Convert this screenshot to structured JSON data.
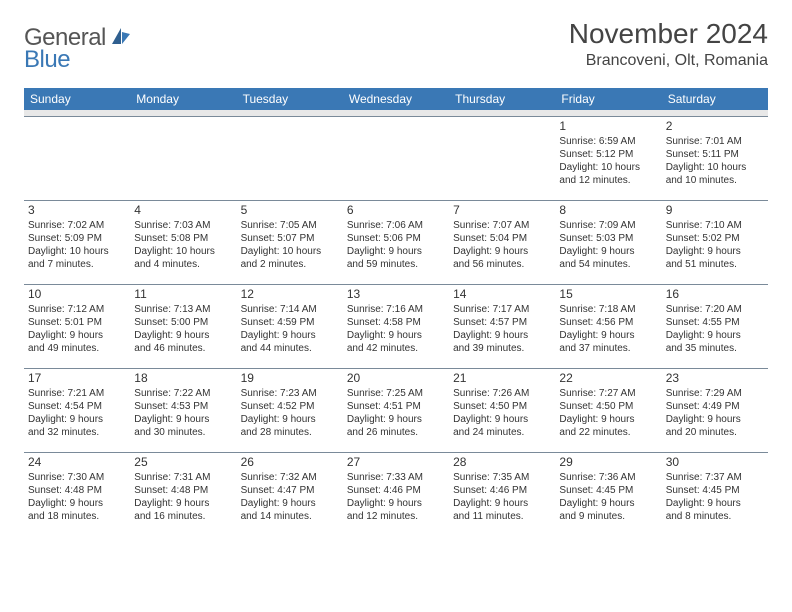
{
  "logo": {
    "general": "General",
    "blue": "Blue"
  },
  "title": "November 2024",
  "location": "Brancoveni, Olt, Romania",
  "colors": {
    "header_bg": "#3a78b5",
    "header_text": "#ffffff",
    "spacer_bg": "#e8e8e8",
    "border": "#7a8a99",
    "text": "#333333",
    "logo_gray": "#555555",
    "logo_blue": "#3a78b5",
    "page_bg": "#ffffff"
  },
  "day_headers": [
    "Sunday",
    "Monday",
    "Tuesday",
    "Wednesday",
    "Thursday",
    "Friday",
    "Saturday"
  ],
  "weeks": [
    [
      null,
      null,
      null,
      null,
      null,
      {
        "n": "1",
        "sr": "Sunrise: 6:59 AM",
        "ss": "Sunset: 5:12 PM",
        "d1": "Daylight: 10 hours",
        "d2": "and 12 minutes."
      },
      {
        "n": "2",
        "sr": "Sunrise: 7:01 AM",
        "ss": "Sunset: 5:11 PM",
        "d1": "Daylight: 10 hours",
        "d2": "and 10 minutes."
      }
    ],
    [
      {
        "n": "3",
        "sr": "Sunrise: 7:02 AM",
        "ss": "Sunset: 5:09 PM",
        "d1": "Daylight: 10 hours",
        "d2": "and 7 minutes."
      },
      {
        "n": "4",
        "sr": "Sunrise: 7:03 AM",
        "ss": "Sunset: 5:08 PM",
        "d1": "Daylight: 10 hours",
        "d2": "and 4 minutes."
      },
      {
        "n": "5",
        "sr": "Sunrise: 7:05 AM",
        "ss": "Sunset: 5:07 PM",
        "d1": "Daylight: 10 hours",
        "d2": "and 2 minutes."
      },
      {
        "n": "6",
        "sr": "Sunrise: 7:06 AM",
        "ss": "Sunset: 5:06 PM",
        "d1": "Daylight: 9 hours",
        "d2": "and 59 minutes."
      },
      {
        "n": "7",
        "sr": "Sunrise: 7:07 AM",
        "ss": "Sunset: 5:04 PM",
        "d1": "Daylight: 9 hours",
        "d2": "and 56 minutes."
      },
      {
        "n": "8",
        "sr": "Sunrise: 7:09 AM",
        "ss": "Sunset: 5:03 PM",
        "d1": "Daylight: 9 hours",
        "d2": "and 54 minutes."
      },
      {
        "n": "9",
        "sr": "Sunrise: 7:10 AM",
        "ss": "Sunset: 5:02 PM",
        "d1": "Daylight: 9 hours",
        "d2": "and 51 minutes."
      }
    ],
    [
      {
        "n": "10",
        "sr": "Sunrise: 7:12 AM",
        "ss": "Sunset: 5:01 PM",
        "d1": "Daylight: 9 hours",
        "d2": "and 49 minutes."
      },
      {
        "n": "11",
        "sr": "Sunrise: 7:13 AM",
        "ss": "Sunset: 5:00 PM",
        "d1": "Daylight: 9 hours",
        "d2": "and 46 minutes."
      },
      {
        "n": "12",
        "sr": "Sunrise: 7:14 AM",
        "ss": "Sunset: 4:59 PM",
        "d1": "Daylight: 9 hours",
        "d2": "and 44 minutes."
      },
      {
        "n": "13",
        "sr": "Sunrise: 7:16 AM",
        "ss": "Sunset: 4:58 PM",
        "d1": "Daylight: 9 hours",
        "d2": "and 42 minutes."
      },
      {
        "n": "14",
        "sr": "Sunrise: 7:17 AM",
        "ss": "Sunset: 4:57 PM",
        "d1": "Daylight: 9 hours",
        "d2": "and 39 minutes."
      },
      {
        "n": "15",
        "sr": "Sunrise: 7:18 AM",
        "ss": "Sunset: 4:56 PM",
        "d1": "Daylight: 9 hours",
        "d2": "and 37 minutes."
      },
      {
        "n": "16",
        "sr": "Sunrise: 7:20 AM",
        "ss": "Sunset: 4:55 PM",
        "d1": "Daylight: 9 hours",
        "d2": "and 35 minutes."
      }
    ],
    [
      {
        "n": "17",
        "sr": "Sunrise: 7:21 AM",
        "ss": "Sunset: 4:54 PM",
        "d1": "Daylight: 9 hours",
        "d2": "and 32 minutes."
      },
      {
        "n": "18",
        "sr": "Sunrise: 7:22 AM",
        "ss": "Sunset: 4:53 PM",
        "d1": "Daylight: 9 hours",
        "d2": "and 30 minutes."
      },
      {
        "n": "19",
        "sr": "Sunrise: 7:23 AM",
        "ss": "Sunset: 4:52 PM",
        "d1": "Daylight: 9 hours",
        "d2": "and 28 minutes."
      },
      {
        "n": "20",
        "sr": "Sunrise: 7:25 AM",
        "ss": "Sunset: 4:51 PM",
        "d1": "Daylight: 9 hours",
        "d2": "and 26 minutes."
      },
      {
        "n": "21",
        "sr": "Sunrise: 7:26 AM",
        "ss": "Sunset: 4:50 PM",
        "d1": "Daylight: 9 hours",
        "d2": "and 24 minutes."
      },
      {
        "n": "22",
        "sr": "Sunrise: 7:27 AM",
        "ss": "Sunset: 4:50 PM",
        "d1": "Daylight: 9 hours",
        "d2": "and 22 minutes."
      },
      {
        "n": "23",
        "sr": "Sunrise: 7:29 AM",
        "ss": "Sunset: 4:49 PM",
        "d1": "Daylight: 9 hours",
        "d2": "and 20 minutes."
      }
    ],
    [
      {
        "n": "24",
        "sr": "Sunrise: 7:30 AM",
        "ss": "Sunset: 4:48 PM",
        "d1": "Daylight: 9 hours",
        "d2": "and 18 minutes."
      },
      {
        "n": "25",
        "sr": "Sunrise: 7:31 AM",
        "ss": "Sunset: 4:48 PM",
        "d1": "Daylight: 9 hours",
        "d2": "and 16 minutes."
      },
      {
        "n": "26",
        "sr": "Sunrise: 7:32 AM",
        "ss": "Sunset: 4:47 PM",
        "d1": "Daylight: 9 hours",
        "d2": "and 14 minutes."
      },
      {
        "n": "27",
        "sr": "Sunrise: 7:33 AM",
        "ss": "Sunset: 4:46 PM",
        "d1": "Daylight: 9 hours",
        "d2": "and 12 minutes."
      },
      {
        "n": "28",
        "sr": "Sunrise: 7:35 AM",
        "ss": "Sunset: 4:46 PM",
        "d1": "Daylight: 9 hours",
        "d2": "and 11 minutes."
      },
      {
        "n": "29",
        "sr": "Sunrise: 7:36 AM",
        "ss": "Sunset: 4:45 PM",
        "d1": "Daylight: 9 hours",
        "d2": "and 9 minutes."
      },
      {
        "n": "30",
        "sr": "Sunrise: 7:37 AM",
        "ss": "Sunset: 4:45 PM",
        "d1": "Daylight: 9 hours",
        "d2": "and 8 minutes."
      }
    ]
  ]
}
